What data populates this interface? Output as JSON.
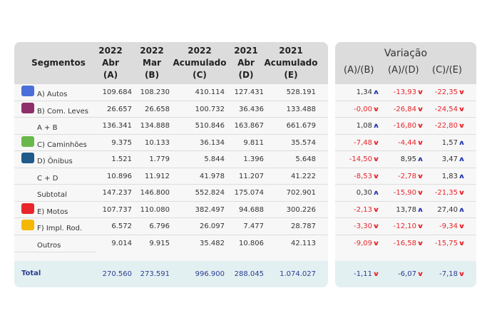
{
  "headers": {
    "segment": "Segmentos",
    "cols": [
      [
        "2022",
        "Abr",
        "(A)"
      ],
      [
        "2022",
        "Mar",
        "(B)"
      ],
      [
        "2022",
        "Acumulado",
        "(C)"
      ],
      [
        "2021",
        "Abr",
        "(D)"
      ],
      [
        "2021",
        "Acumulado",
        "(E)"
      ]
    ]
  },
  "variation": {
    "title": "Variação",
    "cols": [
      "(A)/(B)",
      "(A)/(D)",
      "(C)/(E)"
    ]
  },
  "colors": {
    "up": "#2b3db0",
    "down": "#e8262b",
    "header_bg": "#dcdcdc",
    "total_bg": "#e3f0f2",
    "total_text": "#2a3d8f"
  },
  "rows": [
    {
      "label": "A) Autos",
      "icon": "car-icon",
      "icon_color": "#4a6fd8",
      "values": [
        "109.684",
        "108.230",
        "410.114",
        "127.431",
        "528.191"
      ],
      "var": [
        [
          "1,34",
          "up"
        ],
        [
          "-13,93",
          "down"
        ],
        [
          "-22,35",
          "down"
        ]
      ]
    },
    {
      "label": "B) Com. Leves",
      "icon": "pickup-truck-icon",
      "icon_color": "#8e2f6b",
      "values": [
        "26.657",
        "26.658",
        "100.732",
        "36.436",
        "133.488"
      ],
      "var": [
        [
          "-0,00",
          "down"
        ],
        [
          "-26,84",
          "down"
        ],
        [
          "-24,54",
          "down"
        ]
      ]
    },
    {
      "label": "A + B",
      "icon": "",
      "values": [
        "136.341",
        "134.888",
        "510.846",
        "163.867",
        "661.679"
      ],
      "var": [
        [
          "1,08",
          "up"
        ],
        [
          "-16,80",
          "down"
        ],
        [
          "-22,80",
          "down"
        ]
      ]
    },
    {
      "label": "C) Caminhões",
      "icon": "truck-icon",
      "icon_color": "#6ab84a",
      "values": [
        "9.375",
        "10.133",
        "36.134",
        "9.811",
        "35.574"
      ],
      "var": [
        [
          "-7,48",
          "down"
        ],
        [
          "-4,44",
          "down"
        ],
        [
          "1,57",
          "up"
        ]
      ]
    },
    {
      "label": "D) Ônibus",
      "icon": "bus-icon",
      "icon_color": "#1f5a8a",
      "values": [
        "1.521",
        "1.779",
        "5.844",
        "1.396",
        "5.648"
      ],
      "var": [
        [
          "-14,50",
          "down"
        ],
        [
          "8,95",
          "up"
        ],
        [
          "3,47",
          "up"
        ]
      ]
    },
    {
      "label": "C + D",
      "icon": "",
      "values": [
        "10.896",
        "11.912",
        "41.978",
        "11.207",
        "41.222"
      ],
      "var": [
        [
          "-8,53",
          "down"
        ],
        [
          "-2,78",
          "down"
        ],
        [
          "1,83",
          "up"
        ]
      ]
    },
    {
      "label": "Subtotal",
      "icon": "",
      "values": [
        "147.237",
        "146.800",
        "552.824",
        "175.074",
        "702.901"
      ],
      "var": [
        [
          "0,30",
          "up"
        ],
        [
          "-15,90",
          "down"
        ],
        [
          "-21,35",
          "down"
        ]
      ]
    },
    {
      "label": "E) Motos",
      "icon": "motorcycle-icon",
      "icon_color": "#e8262b",
      "values": [
        "107.737",
        "110.080",
        "382.497",
        "94.688",
        "300.226"
      ],
      "var": [
        [
          "-2,13",
          "down"
        ],
        [
          "13,78",
          "up"
        ],
        [
          "27,40",
          "up"
        ]
      ]
    },
    {
      "label": "F) Impl. Rod.",
      "icon": "trailer-icon",
      "icon_color": "#f5b800",
      "values": [
        "6.572",
        "6.796",
        "26.097",
        "7.477",
        "28.787"
      ],
      "var": [
        [
          "-3,30",
          "down"
        ],
        [
          "-12,10",
          "down"
        ],
        [
          "-9,34",
          "down"
        ]
      ]
    },
    {
      "label": "Outros",
      "icon": "",
      "values": [
        "9.014",
        "9.915",
        "35.482",
        "10.806",
        "42.113"
      ],
      "var": [
        [
          "-9,09",
          "down"
        ],
        [
          "-16,58",
          "down"
        ],
        [
          "-15,75",
          "down"
        ]
      ]
    }
  ],
  "total": {
    "label": "Total",
    "values": [
      "270.560",
      "273.591",
      "996.900",
      "288.045",
      "1.074.027"
    ],
    "var": [
      [
        "-1,11",
        "down"
      ],
      [
        "-6,07",
        "down"
      ],
      [
        "-7,18",
        "down"
      ]
    ]
  }
}
